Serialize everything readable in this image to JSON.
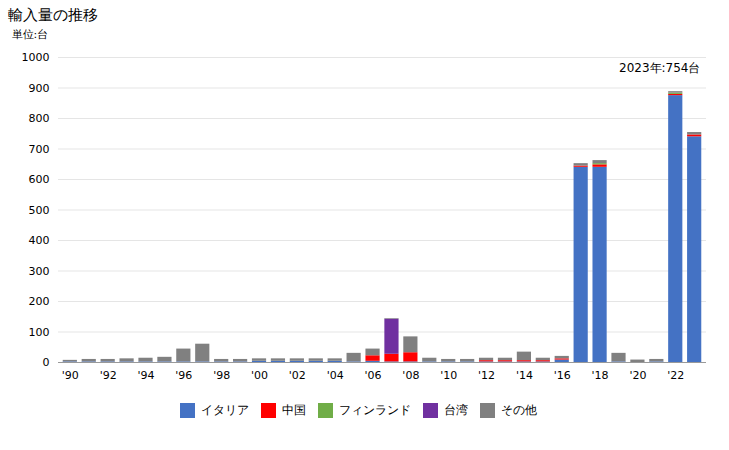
{
  "chart_data": {
    "type": "bar",
    "stacked": true,
    "title": "輸入量の推移",
    "ylabel": "単位:台",
    "annotation": "2023年:754台",
    "categories": [
      "'90",
      null,
      "'92",
      null,
      "'94",
      null,
      "'96",
      null,
      "'98",
      null,
      "'00",
      null,
      "'02",
      null,
      "'04",
      null,
      "'06",
      null,
      "'08",
      null,
      "'10",
      null,
      "'12",
      null,
      "'14",
      null,
      "'16",
      null,
      "'18",
      null,
      "'20",
      null,
      "'22",
      null
    ],
    "series": [
      {
        "name": "イタリア",
        "color": "#4472C4",
        "values": [
          2,
          2,
          2,
          2,
          2,
          2,
          2,
          2,
          2,
          2,
          4,
          4,
          4,
          4,
          4,
          2,
          4,
          2,
          2,
          2,
          2,
          2,
          2,
          2,
          2,
          2,
          8,
          640,
          640,
          2,
          0,
          2,
          875,
          740
        ]
      },
      {
        "name": "中国",
        "color": "#FF0000",
        "values": [
          0,
          0,
          0,
          0,
          0,
          0,
          0,
          0,
          0,
          0,
          0,
          0,
          0,
          0,
          0,
          0,
          18,
          25,
          30,
          0,
          0,
          0,
          4,
          4,
          4,
          4,
          4,
          4,
          8,
          0,
          0,
          0,
          4,
          6
        ]
      },
      {
        "name": "フィンランド",
        "color": "#70AD47",
        "values": [
          0,
          0,
          0,
          0,
          0,
          0,
          0,
          0,
          0,
          0,
          0,
          0,
          0,
          0,
          0,
          0,
          0,
          0,
          0,
          0,
          0,
          0,
          0,
          0,
          0,
          0,
          0,
          0,
          4,
          0,
          0,
          0,
          4,
          0
        ]
      },
      {
        "name": "台湾",
        "color": "#7030A0",
        "values": [
          0,
          0,
          0,
          0,
          0,
          0,
          0,
          0,
          0,
          0,
          0,
          0,
          0,
          0,
          0,
          0,
          0,
          115,
          0,
          0,
          0,
          0,
          0,
          0,
          0,
          0,
          0,
          0,
          0,
          0,
          0,
          0,
          0,
          0
        ]
      },
      {
        "name": "その他",
        "color": "#808080",
        "values": [
          5,
          8,
          8,
          10,
          12,
          15,
          42,
          58,
          8,
          8,
          8,
          8,
          8,
          8,
          8,
          28,
          22,
          2,
          52,
          12,
          8,
          8,
          8,
          8,
          28,
          8,
          8,
          8,
          10,
          28,
          8,
          8,
          5,
          8
        ]
      }
    ],
    "ylim": [
      0,
      1000
    ],
    "yticks": [
      0,
      100,
      200,
      300,
      400,
      500,
      600,
      700,
      800,
      900,
      1000
    ],
    "grid": true,
    "legend": "bottom"
  }
}
